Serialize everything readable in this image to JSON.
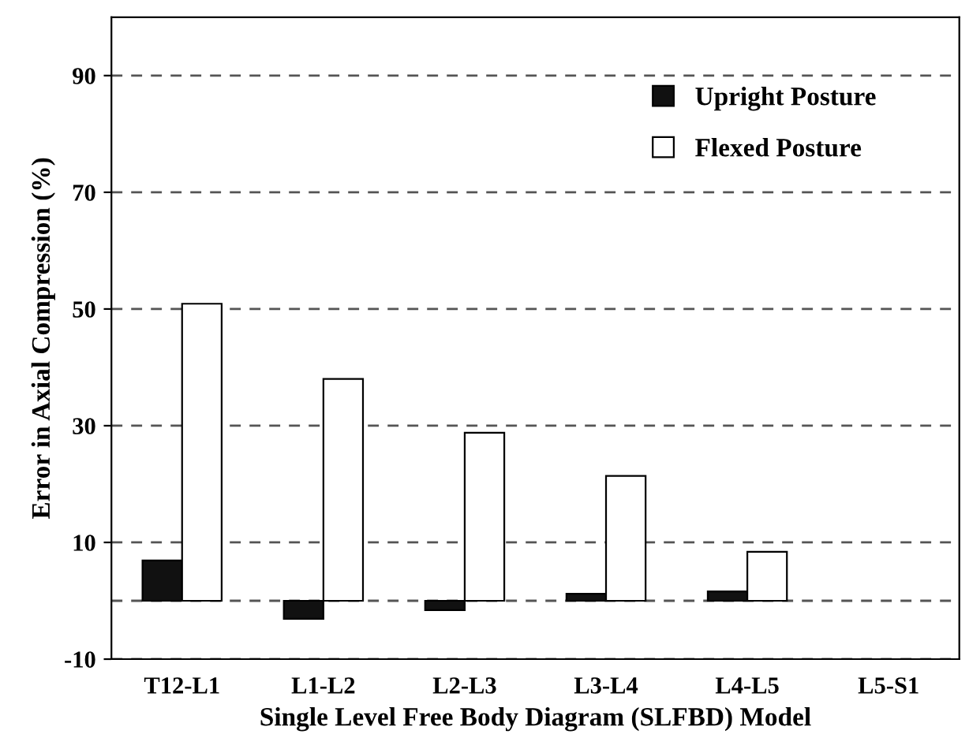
{
  "chart_data": {
    "type": "bar",
    "xlabel": "Single Level Free Body Diagram (SLFBD) Model",
    "ylabel": "Error in Axial Compression (%)",
    "categories": [
      "T12-L1",
      "L1-L2",
      "L2-L3",
      "L3-L4",
      "L4-L5",
      "L5-S1"
    ],
    "series": [
      {
        "name": "Upright Posture",
        "color": "#111111",
        "values": [
          6.9,
          -3.1,
          -1.6,
          1.2,
          1.6,
          null
        ]
      },
      {
        "name": "Flexed Posture",
        "color": "#ffffff",
        "values": [
          50.9,
          38,
          28.8,
          21.4,
          8.4,
          null
        ]
      }
    ],
    "ylim": [
      -10,
      100
    ],
    "yticks": [
      -10,
      10,
      30,
      50,
      70,
      90
    ],
    "grid": "y",
    "legend": "top right",
    "ref_lines": [
      {
        "axis": "y",
        "value": 0,
        "color": "#555555",
        "line_style": "dashed"
      }
    ]
  }
}
